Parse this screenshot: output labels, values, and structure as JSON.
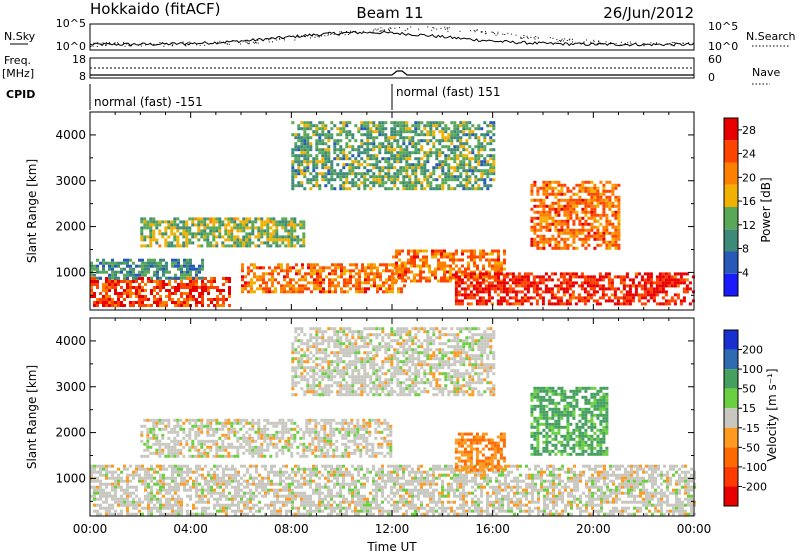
{
  "header": {
    "station": "Hokkaido (fitACF)",
    "beam": "Beam 11",
    "date": "26/Jun/2012"
  },
  "summary": {
    "nsky_label": "N.Sky",
    "nsearch_label": "N.Search",
    "noise_ticks": [
      "10^5",
      "10^0"
    ],
    "freq_label_1": "Freq.",
    "freq_label_2": "[MHz]",
    "freq_ticks": [
      "18",
      "8"
    ],
    "nave_label": "Nave",
    "nave_ticks": [
      "60",
      "0"
    ],
    "cpid_label": "CPID",
    "cpid_segments": [
      {
        "label": "normal (fast) -151",
        "start_hour": 0,
        "end_hour": 12
      },
      {
        "label": "normal (fast) 151",
        "start_hour": 12,
        "end_hour": 24
      }
    ]
  },
  "chart_data": [
    {
      "type": "heatmap",
      "title": "",
      "xlabel": "",
      "ylabel": "Slant Range [km]",
      "x_unit": "hours UT",
      "xlim": [
        0,
        24
      ],
      "ylim": [
        180,
        4500
      ],
      "yticks": [
        1000,
        2000,
        3000,
        4000
      ],
      "colorbar": {
        "label": "Power [dB]",
        "ticks": [
          4,
          8,
          12,
          16,
          20,
          24,
          28
        ],
        "range": [
          0,
          30
        ],
        "colors": [
          "#1a1aff",
          "#2858b8",
          "#3d8a78",
          "#58a858",
          "#f2b000",
          "#ff8000",
          "#ff4400",
          "#e80000"
        ]
      },
      "regions": [
        {
          "start_hour": 0.0,
          "end_hour": 5.5,
          "range_min": 250,
          "range_max": 900,
          "value": 25
        },
        {
          "start_hour": 0.0,
          "end_hour": 4.5,
          "range_min": 900,
          "range_max": 1300,
          "value": 10
        },
        {
          "start_hour": 2.0,
          "end_hour": 8.5,
          "range_min": 1600,
          "range_max": 2200,
          "value": 14
        },
        {
          "start_hour": 6.0,
          "end_hour": 12.5,
          "range_min": 600,
          "range_max": 1200,
          "value": 22
        },
        {
          "start_hour": 12.0,
          "end_hour": 16.5,
          "range_min": 800,
          "range_max": 1500,
          "value": 22
        },
        {
          "start_hour": 14.5,
          "end_hour": 24.0,
          "range_min": 300,
          "range_max": 1000,
          "value": 27
        },
        {
          "start_hour": 8.0,
          "end_hour": 16.0,
          "range_min": 2800,
          "range_max": 4300,
          "value": 12
        },
        {
          "start_hour": 17.5,
          "end_hour": 21.0,
          "range_min": 1500,
          "range_max": 3000,
          "value": 22
        }
      ]
    },
    {
      "type": "heatmap",
      "title": "",
      "xlabel": "Time UT",
      "ylabel": "Slant Range [km]",
      "x_unit": "hours UT",
      "xlim": [
        0,
        24
      ],
      "ylim": [
        180,
        4500
      ],
      "xticks": [
        "00:00",
        "04:00",
        "08:00",
        "12:00",
        "16:00",
        "20:00",
        "00:00"
      ],
      "yticks": [
        1000,
        2000,
        3000,
        4000
      ],
      "colorbar": {
        "label": "Velocity [m s⁻¹]",
        "ticks": [
          "200",
          "100",
          "50",
          "15",
          "-15",
          "-50",
          "-100",
          "-200"
        ],
        "colors": [
          "#1a2fd0",
          "#2e6ab0",
          "#45a060",
          "#6ad040",
          "#c8c8c0",
          "#ff9a20",
          "#ff6a00",
          "#ff3a00",
          "#e80000"
        ]
      },
      "regions": [
        {
          "start_hour": 0.0,
          "end_hour": 24.0,
          "range_min": 250,
          "range_max": 1300,
          "value": 0
        },
        {
          "start_hour": 2.0,
          "end_hour": 12.0,
          "range_min": 1500,
          "range_max": 2300,
          "value": 0
        },
        {
          "start_hour": 8.0,
          "end_hour": 16.0,
          "range_min": 2800,
          "range_max": 4300,
          "value": 0
        },
        {
          "start_hour": 14.5,
          "end_hour": 16.5,
          "range_min": 1200,
          "range_max": 2000,
          "value": -50
        },
        {
          "start_hour": 17.5,
          "end_hour": 20.5,
          "range_min": 1500,
          "range_max": 3000,
          "value": 60
        }
      ]
    }
  ]
}
